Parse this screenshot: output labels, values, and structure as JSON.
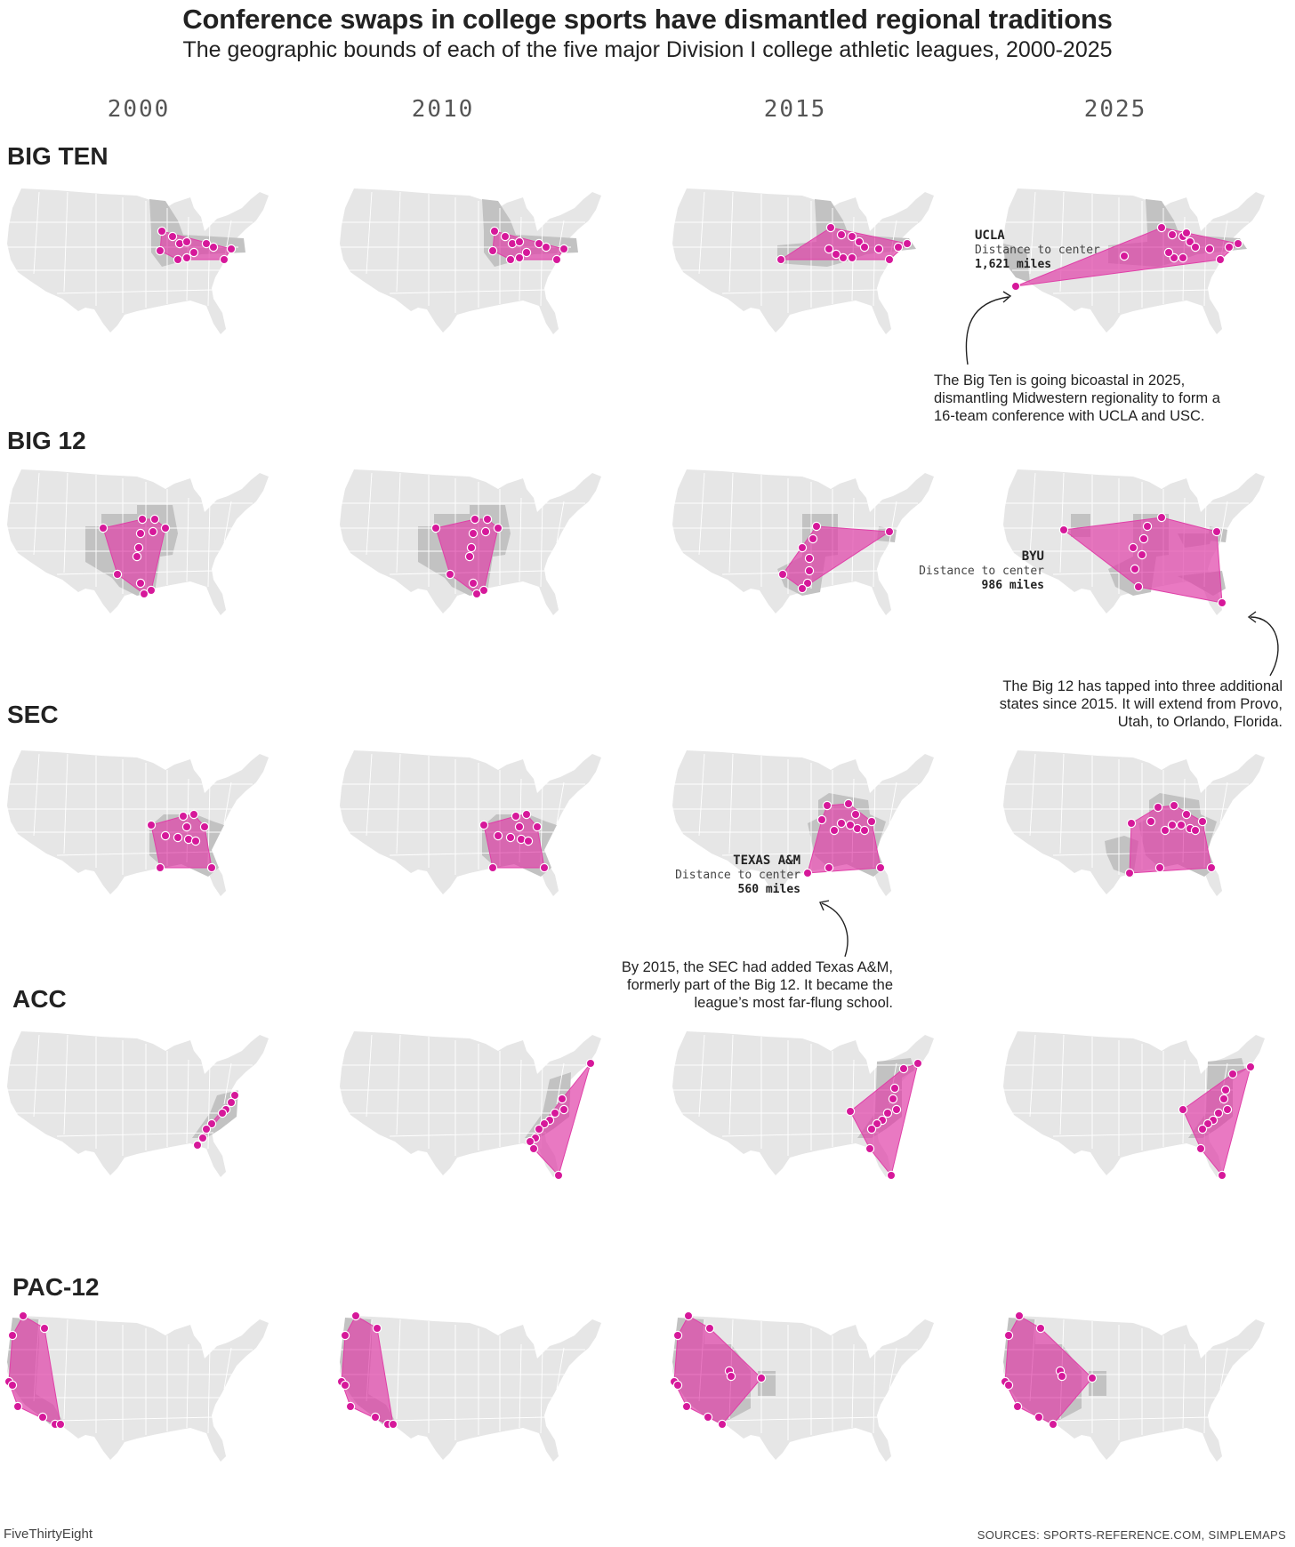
{
  "title": "Conference swaps in college sports have dismantled regional traditions",
  "subtitle": "The geographic bounds of each of the five major Division I college athletic leagues, 2000-2025",
  "years": [
    "2000",
    "2010",
    "2015",
    "2025"
  ],
  "colors": {
    "land": "#e6e6e6",
    "state_border": "#ffffff",
    "member_state": "#c2c2c2",
    "hull": "#e040a8",
    "dot": "#d6189a",
    "dot_stroke": "#ffffff"
  },
  "conferences": [
    {
      "name": "BIG TEN"
    },
    {
      "name": "BIG 12"
    },
    {
      "name": "SEC"
    },
    {
      "name": "ACC"
    },
    {
      "name": "PAC-12"
    }
  ],
  "callouts": {
    "ucla": {
      "name": "UCLA",
      "label": "Distance to center",
      "value": "1,621 miles"
    },
    "byu": {
      "name": "BYU",
      "label": "Distance to center",
      "value": "986 miles"
    },
    "tamu": {
      "name": "TEXAS A&M",
      "label": "Distance to center",
      "value": "560 miles"
    }
  },
  "notes": {
    "big_ten": "The Big Ten is going bicoastal in 2025, dismantling Midwestern regionality to form a 16-team conference with UCLA and USC.",
    "big_12": "The Big 12 has tapped into three additional states since 2015. It will extend from Provo, Utah, to Orlando, Florida.",
    "sec": "By 2015, the SEC had added Texas A&M, formerly part of the Big 12. It became the league’s most far-flung school."
  },
  "credit": "FiveThirtyEight",
  "source": "SOURCES: SPORTS-REFERENCE.COM, SIMPLEMAPS"
}
